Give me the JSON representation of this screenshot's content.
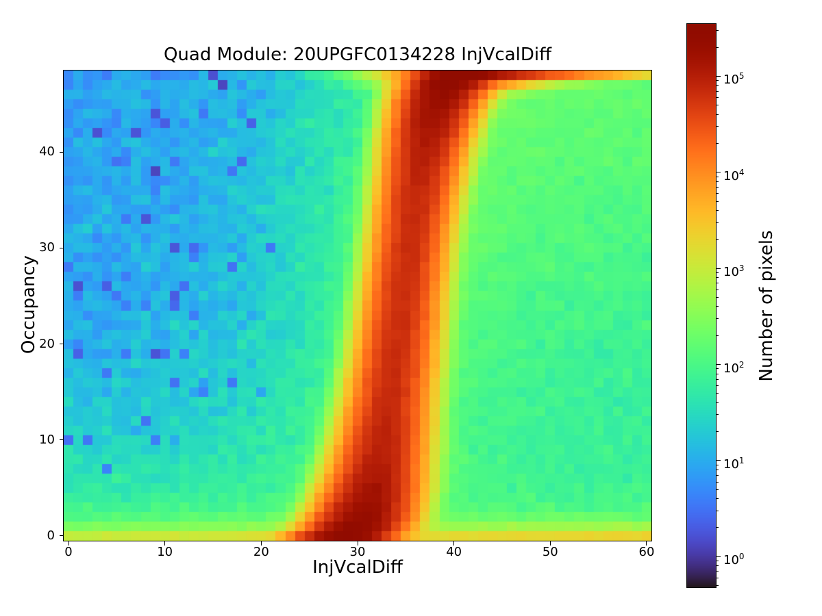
{
  "figure": {
    "background": "#ffffff"
  },
  "chart_data": {
    "type": "heatmap",
    "title": "Quad Module: 20UPGFC0134228 InjVcalDiff",
    "xlabel": "InjVcalDiff",
    "ylabel": "Occupancy",
    "colorbar_label": "Number of pixels",
    "colormap": "turbo",
    "color_scale": "log",
    "vmin": 0.48,
    "vmax": 350000,
    "x_range": [
      -0.5,
      60.5
    ],
    "y_range": [
      -0.5,
      48.5
    ],
    "x_bins": 61,
    "y_bins": 49,
    "x_ticks": [
      0,
      10,
      20,
      30,
      40,
      50,
      60
    ],
    "y_ticks": [
      0,
      10,
      20,
      30,
      40
    ],
    "colorbar_tick_exponents": [
      0,
      1,
      2,
      3,
      4,
      5
    ],
    "grid": false,
    "legend": false,
    "description": "2D histogram of pixel occupancy vs injected charge (threshold S-curve scan of a quad module). Cell counts are regenerated from s_curve_model: a probit ridge occupancy=48*Phi((x-mu)/sigma) with log-scaled turbo colormap, low-count blue background left of the ridge, teal-green background right of it, elevated yellow bottom row, and saturated dark-red top-right tail.",
    "s_curve_model": {
      "mu": 34.6,
      "sigma": 2.5,
      "ridge_amp_mid": 65000,
      "ridge_amp_edge": 265000,
      "ridge_amp_power": 10,
      "ridge_width_mid": 1.35,
      "ridge_width_bottom": 0.85,
      "ridge_width_top": 0.5,
      "bg_left_base": 7,
      "bg_left_bottom": 30,
      "bg_left_bottom_len": 8,
      "approach_left_amp": 170,
      "approach_left_len": 4.5,
      "approach_left2_amp": 45,
      "approach_left2_len": 9,
      "bg_right_base": 50,
      "bg_right_top_gain": 120,
      "approach_right_amp": 150,
      "approach_right_len": 6,
      "bottom_amp": 750,
      "bottom_xgain": 20,
      "bottom_decay": 1.55,
      "bottom_soft_amp": 70,
      "bottom_soft_len": 4.5,
      "top_tail_amp": 330000,
      "top_tail_row_decay": 2.0,
      "top_tail_x0": 41,
      "top_tail_len_base": 1.2,
      "top_tail_len_gain": 2.4,
      "top_tail_len_row_decay": 0.9,
      "noise_base": 0.06,
      "noise_gain": 0.28,
      "noise_scale": 50,
      "outlier_threshold": 25,
      "outlier_p1": 0.035,
      "outlier_factor1": 0.18,
      "outlier_p2": 0.1,
      "outlier_factor2": 0.45,
      "clamp_min": 0.55,
      "seed": 7
    }
  }
}
